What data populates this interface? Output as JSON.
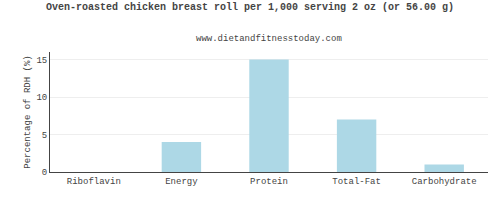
{
  "chart_data": {
    "type": "bar",
    "title": "Oven-roasted chicken breast roll per 1,000 serving 2 oz (or 56.00 g)",
    "subtitle": "www.dietandfitnesstoday.com",
    "ylabel": "Percentage of RDH (%)",
    "categories": [
      "Riboflavin",
      "Energy",
      "Protein",
      "Total-Fat",
      "Carbohydrate"
    ],
    "values": [
      0.0,
      4.0,
      15.0,
      7.0,
      1.0
    ],
    "color": "#add8e6",
    "ylim": [
      0,
      16
    ],
    "yticks": [
      0,
      5,
      10,
      15
    ],
    "grid": true
  }
}
